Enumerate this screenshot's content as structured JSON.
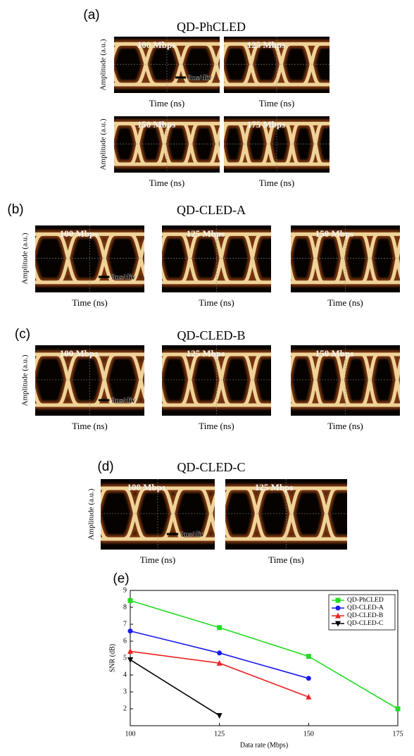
{
  "panels": [
    {
      "label": "(a)",
      "title": "QD-PhCLED",
      "y_label": "Amplitude (a.u.)",
      "x_label": "Time (ns)",
      "scale": "3ns/div",
      "eyes": [
        "100 Mbps",
        "125 Mbps",
        "150 Mbps",
        "175 Mbps"
      ]
    },
    {
      "label": "(b)",
      "title": "QD-CLED-A",
      "y_label": "Amplitude (a.u.)",
      "x_label": "Time (ns)",
      "scale": "3ns/div",
      "eyes": [
        "100 Mbps",
        "125 Mbps",
        "150 Mbps"
      ]
    },
    {
      "label": "(c)",
      "title": "QD-CLED-B",
      "y_label": "Amplitude (a.u.)",
      "x_label": "Time (ns)",
      "scale": "3ns/div",
      "eyes": [
        "100 Mbps",
        "125 Mbps",
        "150 Mbps"
      ]
    },
    {
      "label": "(d)",
      "title": "QD-CLED-C",
      "y_label": "Amplitude (a.u.)",
      "x_label": "Time (ns)",
      "scale": "3ns/div",
      "eyes": [
        "100 Mbps",
        "125 Mbps"
      ]
    }
  ],
  "chart_data": {
    "type": "line",
    "panel_label": "(e)",
    "x_label": "Data rate (Mbps)",
    "y_label": "SNR (dB)",
    "x": [
      100,
      125,
      150,
      175
    ],
    "xlim": [
      100,
      175
    ],
    "xticks": [
      100,
      125,
      150,
      175
    ],
    "ylim": [
      1,
      9
    ],
    "yticks": [
      2,
      3,
      4,
      5,
      6,
      7,
      8,
      9
    ],
    "legend": "top-right",
    "series": [
      {
        "name": "QD-PhCLED",
        "color": "#22dd22",
        "marker": "square",
        "values": [
          8.4,
          6.8,
          5.1,
          2.0
        ]
      },
      {
        "name": "QD-CLED-A",
        "color": "#1a1aee",
        "marker": "circle",
        "values": [
          6.6,
          5.3,
          3.8,
          null
        ]
      },
      {
        "name": "QD-CLED-B",
        "color": "#ee2222",
        "marker": "triangle",
        "values": [
          5.4,
          4.7,
          2.7,
          null
        ]
      },
      {
        "name": "QD-CLED-C",
        "color": "#000000",
        "marker": "triangle-down",
        "values": [
          4.9,
          1.6,
          null,
          null
        ]
      }
    ]
  }
}
